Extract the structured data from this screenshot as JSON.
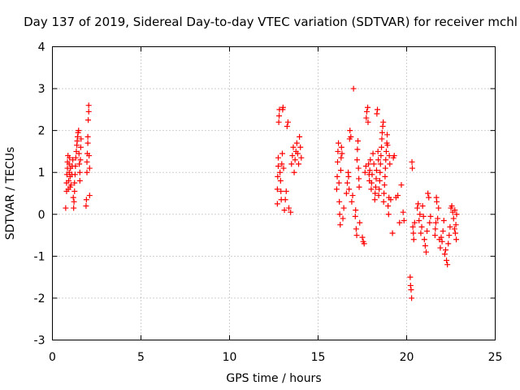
{
  "chart_data": {
    "type": "scatter",
    "title": "Day 137 of 2019, Sidereal Day-to-day VTEC variation (SDTVAR) for receiver mchl",
    "xlabel": "GPS time / hours",
    "ylabel": "SDTVAR / TECUs",
    "xlim": [
      0,
      25
    ],
    "ylim": [
      -3,
      4
    ],
    "xticks": [
      "0",
      "5",
      "10",
      "15",
      "20",
      "25"
    ],
    "yticks": [
      "-3",
      "-2",
      "-1",
      "0",
      "1",
      "2",
      "3",
      "4"
    ],
    "grid": true,
    "marker": "+",
    "color": "#ff0000",
    "series": [
      {
        "name": "SDTVAR",
        "points": [
          [
            0.75,
            0.15
          ],
          [
            0.8,
            0.55
          ],
          [
            0.8,
            0.75
          ],
          [
            0.82,
            0.95
          ],
          [
            0.85,
            1.1
          ],
          [
            0.85,
            1.25
          ],
          [
            0.88,
            1.4
          ],
          [
            0.9,
            0.6
          ],
          [
            0.92,
            0.8
          ],
          [
            0.95,
            1.0
          ],
          [
            0.95,
            1.2
          ],
          [
            0.97,
            1.35
          ],
          [
            1.0,
            0.65
          ],
          [
            1.0,
            0.9
          ],
          [
            1.02,
            1.1
          ],
          [
            1.05,
            0.7
          ],
          [
            1.1,
            0.95
          ],
          [
            1.12,
            1.15
          ],
          [
            1.15,
            1.3
          ],
          [
            1.18,
            0.4
          ],
          [
            1.2,
            0.15
          ],
          [
            1.22,
            0.3
          ],
          [
            1.25,
            0.55
          ],
          [
            1.25,
            0.75
          ],
          [
            1.28,
            0.95
          ],
          [
            1.3,
            1.15
          ],
          [
            1.32,
            1.35
          ],
          [
            1.35,
            1.5
          ],
          [
            1.38,
            1.65
          ],
          [
            1.4,
            1.75
          ],
          [
            1.42,
            1.85
          ],
          [
            1.45,
            1.95
          ],
          [
            1.48,
            2.0
          ],
          [
            1.5,
            1.45
          ],
          [
            1.52,
            1.2
          ],
          [
            1.55,
            1.0
          ],
          [
            1.55,
            0.8
          ],
          [
            1.58,
            1.3
          ],
          [
            1.6,
            1.6
          ],
          [
            1.62,
            1.8
          ],
          [
            1.9,
            0.2
          ],
          [
            1.92,
            0.35
          ],
          [
            1.95,
            1.0
          ],
          [
            1.95,
            1.25
          ],
          [
            1.97,
            1.45
          ],
          [
            2.0,
            1.7
          ],
          [
            2.0,
            1.85
          ],
          [
            2.02,
            2.25
          ],
          [
            2.05,
            2.45
          ],
          [
            2.05,
            2.6
          ],
          [
            2.07,
            1.4
          ],
          [
            2.1,
            1.1
          ],
          [
            2.1,
            0.45
          ],
          [
            12.7,
            0.25
          ],
          [
            12.7,
            0.6
          ],
          [
            12.72,
            0.9
          ],
          [
            12.75,
            1.15
          ],
          [
            12.75,
            1.35
          ],
          [
            12.78,
            2.2
          ],
          [
            12.8,
            2.35
          ],
          [
            12.82,
            2.5
          ],
          [
            12.85,
            1.0
          ],
          [
            12.88,
            0.8
          ],
          [
            12.9,
            0.55
          ],
          [
            12.92,
            0.35
          ],
          [
            12.95,
            1.2
          ],
          [
            12.98,
            1.45
          ],
          [
            13.0,
            2.5
          ],
          [
            13.02,
            2.55
          ],
          [
            13.05,
            1.1
          ],
          [
            13.1,
            0.1
          ],
          [
            13.15,
            0.35
          ],
          [
            13.2,
            0.55
          ],
          [
            13.25,
            2.1
          ],
          [
            13.3,
            2.2
          ],
          [
            13.35,
            0.15
          ],
          [
            13.45,
            0.05
          ],
          [
            13.5,
            1.2
          ],
          [
            13.55,
            1.4
          ],
          [
            13.6,
            1.6
          ],
          [
            13.65,
            1.0
          ],
          [
            13.7,
            1.3
          ],
          [
            13.75,
            1.5
          ],
          [
            13.8,
            1.7
          ],
          [
            13.85,
            1.45
          ],
          [
            13.9,
            1.2
          ],
          [
            13.95,
            1.85
          ],
          [
            14.0,
            1.6
          ],
          [
            14.05,
            1.35
          ],
          [
            16.05,
            0.6
          ],
          [
            16.08,
            0.9
          ],
          [
            16.1,
            1.25
          ],
          [
            16.12,
            1.5
          ],
          [
            16.15,
            1.7
          ],
          [
            16.18,
            0.75
          ],
          [
            16.2,
            0.3
          ],
          [
            16.22,
            0.0
          ],
          [
            16.25,
            -0.25
          ],
          [
            16.28,
            1.05
          ],
          [
            16.3,
            1.35
          ],
          [
            16.32,
            1.6
          ],
          [
            16.35,
            1.45
          ],
          [
            16.4,
            -0.1
          ],
          [
            16.45,
            0.15
          ],
          [
            16.6,
            0.5
          ],
          [
            16.65,
            0.75
          ],
          [
            16.7,
            1.0
          ],
          [
            16.72,
            0.9
          ],
          [
            16.75,
            0.6
          ],
          [
            16.78,
            1.8
          ],
          [
            16.8,
            2.0
          ],
          [
            16.85,
            1.85
          ],
          [
            16.9,
            0.3
          ],
          [
            16.95,
            0.45
          ],
          [
            17.0,
            3.0
          ],
          [
            17.1,
            -0.05
          ],
          [
            17.12,
            0.1
          ],
          [
            17.15,
            -0.35
          ],
          [
            17.18,
            -0.5
          ],
          [
            17.2,
            1.3
          ],
          [
            17.22,
            1.55
          ],
          [
            17.25,
            1.75
          ],
          [
            17.28,
            1.1
          ],
          [
            17.3,
            0.85
          ],
          [
            17.32,
            0.65
          ],
          [
            17.35,
            -0.2
          ],
          [
            17.5,
            -0.55
          ],
          [
            17.55,
            -0.65
          ],
          [
            17.6,
            -0.7
          ],
          [
            17.65,
            1.0
          ],
          [
            17.7,
            1.15
          ],
          [
            17.72,
            2.3
          ],
          [
            17.75,
            2.45
          ],
          [
            17.8,
            2.55
          ],
          [
            17.82,
            2.2
          ],
          [
            17.85,
            1.2
          ],
          [
            17.88,
            0.95
          ],
          [
            17.9,
            0.8
          ],
          [
            17.92,
            1.05
          ],
          [
            17.95,
            1.3
          ],
          [
            18.0,
            0.6
          ],
          [
            18.02,
            0.75
          ],
          [
            18.05,
            0.95
          ],
          [
            18.1,
            1.45
          ],
          [
            18.15,
            1.2
          ],
          [
            18.2,
            0.35
          ],
          [
            18.22,
            0.5
          ],
          [
            18.25,
            0.65
          ],
          [
            18.28,
            0.85
          ],
          [
            18.3,
            1.05
          ],
          [
            18.32,
            2.4
          ],
          [
            18.35,
            2.5
          ],
          [
            18.38,
            1.5
          ],
          [
            18.4,
            1.3
          ],
          [
            18.42,
            0.45
          ],
          [
            18.45,
            0.6
          ],
          [
            18.48,
            0.8
          ],
          [
            18.5,
            1.0
          ],
          [
            18.52,
            1.2
          ],
          [
            18.55,
            1.4
          ],
          [
            18.58,
            1.6
          ],
          [
            18.6,
            1.8
          ],
          [
            18.62,
            1.95
          ],
          [
            18.65,
            2.1
          ],
          [
            18.68,
            2.2
          ],
          [
            18.7,
            0.3
          ],
          [
            18.72,
            0.5
          ],
          [
            18.75,
            0.7
          ],
          [
            18.78,
            0.9
          ],
          [
            18.8,
            1.1
          ],
          [
            18.82,
            1.3
          ],
          [
            18.85,
            1.5
          ],
          [
            18.88,
            1.7
          ],
          [
            18.9,
            1.9
          ],
          [
            18.92,
            1.65
          ],
          [
            18.95,
            0.2
          ],
          [
            18.98,
            0.0
          ],
          [
            19.0,
            0.4
          ],
          [
            19.02,
            1.4
          ],
          [
            19.05,
            1.2
          ],
          [
            19.1,
            0.35
          ],
          [
            19.2,
            -0.45
          ],
          [
            19.25,
            1.35
          ],
          [
            19.3,
            1.4
          ],
          [
            19.4,
            0.4
          ],
          [
            19.5,
            0.45
          ],
          [
            19.6,
            -0.2
          ],
          [
            19.7,
            0.7
          ],
          [
            19.8,
            0.05
          ],
          [
            19.85,
            -0.15
          ],
          [
            20.2,
            -1.5
          ],
          [
            20.22,
            -1.7
          ],
          [
            20.25,
            -1.8
          ],
          [
            20.28,
            -2.0
          ],
          [
            20.3,
            1.25
          ],
          [
            20.32,
            1.1
          ],
          [
            20.35,
            -0.3
          ],
          [
            20.38,
            -0.45
          ],
          [
            20.4,
            -0.6
          ],
          [
            20.45,
            -0.2
          ],
          [
            20.6,
            0.15
          ],
          [
            20.65,
            0.25
          ],
          [
            20.7,
            -0.15
          ],
          [
            20.75,
            0.0
          ],
          [
            20.8,
            -0.45
          ],
          [
            20.85,
            -0.3
          ],
          [
            20.9,
            0.2
          ],
          [
            20.95,
            -0.05
          ],
          [
            21.0,
            -0.6
          ],
          [
            21.05,
            -0.75
          ],
          [
            21.1,
            -0.9
          ],
          [
            21.15,
            -0.4
          ],
          [
            21.2,
            0.5
          ],
          [
            21.25,
            0.4
          ],
          [
            21.3,
            -0.2
          ],
          [
            21.35,
            -0.05
          ],
          [
            21.6,
            -0.5
          ],
          [
            21.62,
            -0.35
          ],
          [
            21.65,
            -0.2
          ],
          [
            21.68,
            0.4
          ],
          [
            21.7,
            0.3
          ],
          [
            21.75,
            -0.1
          ],
          [
            21.8,
            0.15
          ],
          [
            21.85,
            -0.6
          ],
          [
            21.9,
            -0.8
          ],
          [
            21.95,
            -0.55
          ],
          [
            22.0,
            -0.65
          ],
          [
            22.05,
            -0.4
          ],
          [
            22.1,
            -0.15
          ],
          [
            22.15,
            -0.95
          ],
          [
            22.2,
            -0.85
          ],
          [
            22.25,
            -1.1
          ],
          [
            22.3,
            -1.2
          ],
          [
            22.35,
            -0.7
          ],
          [
            22.4,
            -0.5
          ],
          [
            22.45,
            -0.3
          ],
          [
            22.5,
            0.15
          ],
          [
            22.55,
            0.2
          ],
          [
            22.6,
            0.05
          ],
          [
            22.65,
            -0.1
          ],
          [
            22.7,
            -0.35
          ],
          [
            22.72,
            0.1
          ],
          [
            22.75,
            -0.45
          ],
          [
            22.78,
            -0.25
          ],
          [
            22.8,
            -0.6
          ],
          [
            22.82,
            0.0
          ]
        ]
      }
    ]
  }
}
